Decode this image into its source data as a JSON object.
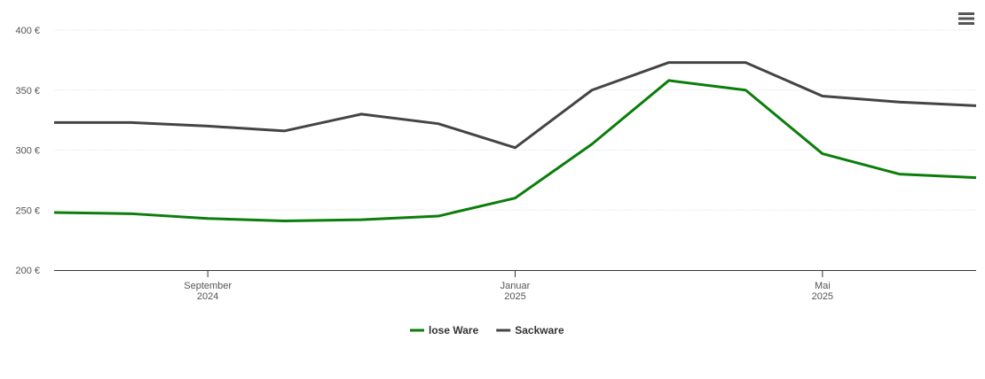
{
  "chart_data": {
    "type": "line",
    "x": [
      "2024-07",
      "2024-08",
      "2024-09",
      "2024-10",
      "2024-11",
      "2024-12",
      "2025-01",
      "2025-02",
      "2025-03",
      "2025-04",
      "2025-05",
      "2025-06",
      "2025-07"
    ],
    "series": [
      {
        "name": "lose Ware",
        "color": "#0a7d0a",
        "values": [
          248,
          247,
          243,
          241,
          242,
          245,
          260,
          305,
          358,
          350,
          297,
          280,
          277
        ]
      },
      {
        "name": "Sackware",
        "color": "#444444",
        "values": [
          323,
          323,
          320,
          316,
          330,
          322,
          302,
          350,
          373,
          373,
          345,
          340,
          337
        ]
      }
    ],
    "xlim": [
      "2024-07",
      "2025-07"
    ],
    "xticks": [
      {
        "value": "2024-09",
        "label": "September\n2024"
      },
      {
        "value": "2025-01",
        "label": "Januar\n2025"
      },
      {
        "value": "2025-05",
        "label": "Mai\n2025"
      }
    ],
    "ylim": [
      200,
      400
    ],
    "yticks": [
      {
        "value": 200,
        "label": "200 €"
      },
      {
        "value": 250,
        "label": "250 €"
      },
      {
        "value": 300,
        "label": "300 €"
      },
      {
        "value": 350,
        "label": "350 €"
      },
      {
        "value": 400,
        "label": "400 €"
      }
    ],
    "grid": true,
    "legend": "bottom"
  }
}
